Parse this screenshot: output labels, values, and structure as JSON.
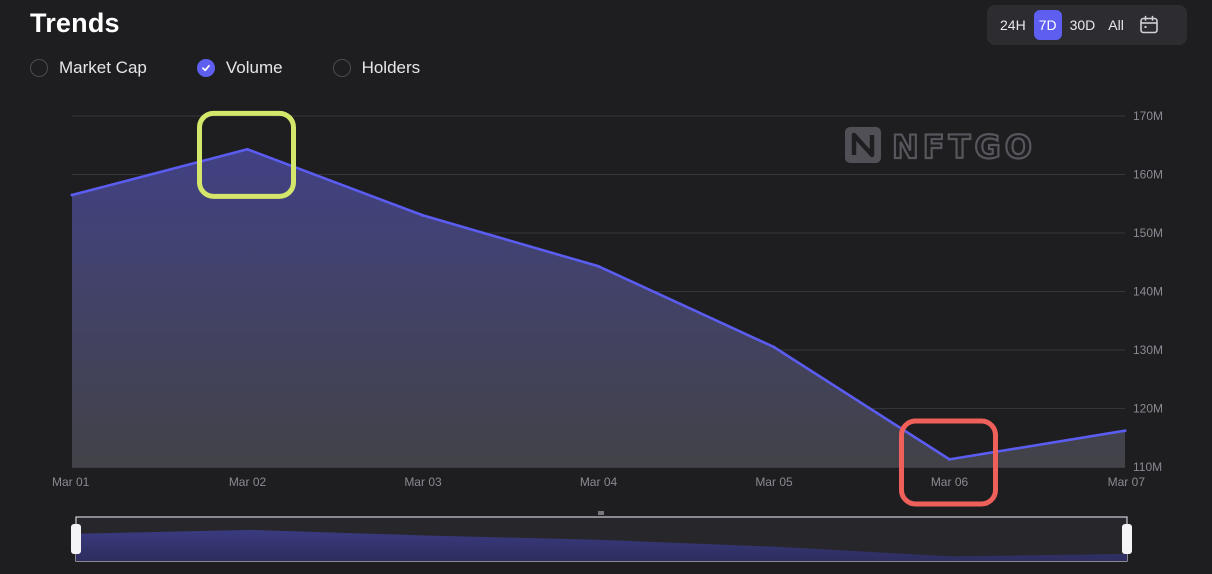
{
  "header": {
    "title": "Trends"
  },
  "range": {
    "options": [
      "24H",
      "7D",
      "30D",
      "All"
    ],
    "selected": "7D"
  },
  "legend": {
    "items": [
      {
        "label": "Market Cap",
        "checked": false
      },
      {
        "label": "Volume",
        "checked": true
      },
      {
        "label": "Holders",
        "checked": false
      }
    ]
  },
  "watermark": {
    "text": "NFTGO"
  },
  "colors": {
    "accent": "#5e5ff0",
    "line": "#5b5cf0",
    "highlight_max": "#d4e76a",
    "highlight_min": "#f0605a"
  },
  "chart_data": {
    "type": "area",
    "x": [
      "Mar 01",
      "Mar 02",
      "Mar 03",
      "Mar 04",
      "Mar 05",
      "Mar 06",
      "Mar 07"
    ],
    "series": [
      {
        "values": [
          156.5,
          164.3,
          153.0,
          144.3,
          130.5,
          111.3,
          116.2
        ]
      }
    ],
    "y_ticks": [
      "110M",
      "120M",
      "130M",
      "140M",
      "150M",
      "160M",
      "170M"
    ],
    "ylim": [
      110,
      170
    ],
    "y_unit": "M",
    "title": "",
    "xlabel": "",
    "ylabel": "",
    "grid": true,
    "highlights": [
      {
        "category": "Mar 02",
        "kind": "max"
      },
      {
        "category": "Mar 06",
        "kind": "min"
      }
    ]
  }
}
